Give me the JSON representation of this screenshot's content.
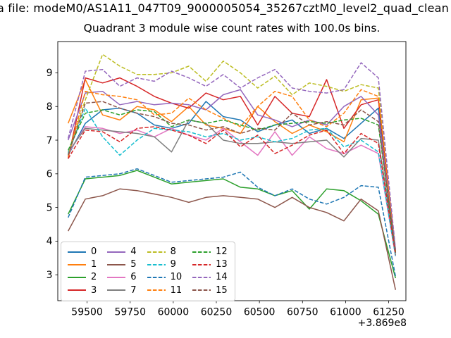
{
  "figure": {
    "suptitle": "a file: modeM0/AS1A11_047T09_9000005054_35267cztM0_level2_quad_clean",
    "axes_title": "Quadrant 3 module wise count rates with 100.0s bins.",
    "x_offset_text": "+3.869e8",
    "background": "#ffffff",
    "axes_color": "#000000"
  },
  "chart_data": {
    "type": "line",
    "title": "Quadrant 3 module wise count rates with 100.0s bins.",
    "xlabel": "",
    "ylabel": "",
    "x_axis_offset": "+3.869e8",
    "grid": false,
    "legend_position": "lower left",
    "legend_columns": 4,
    "xlim": [
      59330,
      61350
    ],
    "ylim": [
      2.23,
      9.93
    ],
    "x_ticks": [
      59500,
      59750,
      60000,
      60250,
      60500,
      60750,
      61000,
      61250
    ],
    "y_ticks": [
      3,
      4,
      5,
      6,
      7,
      8,
      9
    ],
    "x": [
      59390,
      59490,
      59590,
      59690,
      59790,
      59890,
      59990,
      60090,
      60190,
      60290,
      60390,
      60490,
      60590,
      60690,
      60790,
      60890,
      60990,
      61090,
      61190,
      61290
    ],
    "series": [
      {
        "label": "0",
        "color": "#1f77b4",
        "style": "solid",
        "values": [
          6.55,
          7.5,
          7.9,
          7.95,
          7.8,
          7.45,
          7.35,
          7.5,
          8.15,
          7.7,
          7.6,
          7.25,
          7.45,
          7.6,
          7.2,
          7.35,
          7.05,
          7.5,
          7.95,
          3.7
        ]
      },
      {
        "label": "1",
        "color": "#ff7f0e",
        "style": "solid",
        "values": [
          7.5,
          8.8,
          7.75,
          7.6,
          8.0,
          7.9,
          7.55,
          8.0,
          7.45,
          7.35,
          7.2,
          8.0,
          7.55,
          7.2,
          7.45,
          7.25,
          6.95,
          8.2,
          8.25,
          3.65
        ]
      },
      {
        "label": "2",
        "color": "#2ca02c",
        "style": "solid",
        "values": [
          4.8,
          5.85,
          5.9,
          5.95,
          6.1,
          5.9,
          5.7,
          5.75,
          5.8,
          5.85,
          5.6,
          5.55,
          5.35,
          5.5,
          4.95,
          5.55,
          5.5,
          5.2,
          4.8,
          2.9
        ]
      },
      {
        "label": "3",
        "color": "#d62728",
        "style": "solid",
        "values": [
          6.45,
          8.85,
          8.7,
          8.85,
          8.6,
          8.3,
          8.1,
          7.95,
          8.4,
          8.2,
          8.3,
          7.45,
          8.3,
          7.8,
          7.7,
          8.8,
          7.35,
          8.05,
          8.2,
          3.7
        ]
      },
      {
        "label": "4",
        "color": "#9467bd",
        "style": "solid",
        "values": [
          7.0,
          8.4,
          8.45,
          8.05,
          8.15,
          8.05,
          8.1,
          8.05,
          7.9,
          8.35,
          8.5,
          7.75,
          7.6,
          7.4,
          7.6,
          7.45,
          8.0,
          8.3,
          7.75,
          3.7
        ]
      },
      {
        "label": "5",
        "color": "#8c564b",
        "style": "solid",
        "values": [
          4.3,
          5.25,
          5.35,
          5.55,
          5.5,
          5.4,
          5.3,
          5.15,
          5.3,
          5.35,
          5.3,
          5.25,
          5.0,
          5.3,
          5.0,
          4.85,
          4.6,
          5.25,
          4.9,
          2.55
        ]
      },
      {
        "label": "6",
        "color": "#e377c2",
        "style": "solid",
        "values": [
          6.6,
          7.4,
          7.35,
          7.2,
          7.3,
          7.1,
          7.35,
          7.15,
          7.0,
          7.35,
          6.95,
          6.55,
          7.25,
          6.55,
          7.1,
          6.75,
          6.6,
          6.85,
          6.6,
          3.55
        ]
      },
      {
        "label": "7",
        "color": "#7f7f7f",
        "style": "solid",
        "values": [
          6.65,
          7.35,
          7.3,
          7.25,
          7.2,
          7.1,
          6.65,
          7.6,
          7.5,
          7.0,
          6.9,
          6.9,
          6.95,
          6.9,
          6.95,
          7.0,
          6.5,
          7.05,
          7.0,
          3.65
        ]
      },
      {
        "label": "8",
        "color": "#bcbd22",
        "style": "dashed",
        "values": [
          6.6,
          8.2,
          9.55,
          9.2,
          8.95,
          8.95,
          9.0,
          9.2,
          8.75,
          9.35,
          9.0,
          8.55,
          8.9,
          8.35,
          8.7,
          8.6,
          8.45,
          8.65,
          8.55,
          3.7
        ]
      },
      {
        "label": "9",
        "color": "#17becf",
        "style": "dashed",
        "values": [
          6.6,
          7.95,
          7.1,
          6.55,
          7.0,
          7.35,
          7.3,
          7.25,
          7.1,
          7.2,
          7.0,
          7.1,
          6.95,
          7.05,
          7.3,
          7.35,
          6.8,
          7.0,
          6.65,
          3.55
        ]
      },
      {
        "label": "10",
        "color": "#1f77b4",
        "style": "dashed",
        "values": [
          4.7,
          5.9,
          5.95,
          6.0,
          6.15,
          5.95,
          5.75,
          5.8,
          5.85,
          5.9,
          6.05,
          5.6,
          5.35,
          5.55,
          5.25,
          5.1,
          5.3,
          5.65,
          5.6,
          2.95
        ]
      },
      {
        "label": "11",
        "color": "#ff7f0e",
        "style": "dashed",
        "values": [
          6.5,
          8.45,
          8.35,
          8.3,
          8.2,
          7.75,
          7.8,
          8.25,
          7.9,
          7.65,
          7.4,
          8.0,
          8.45,
          8.3,
          7.6,
          7.4,
          7.8,
          8.5,
          8.3,
          3.7
        ]
      },
      {
        "label": "12",
        "color": "#2ca02c",
        "style": "dashed",
        "values": [
          6.7,
          7.8,
          7.9,
          7.75,
          7.9,
          7.85,
          7.4,
          7.6,
          7.5,
          7.6,
          7.45,
          7.3,
          7.45,
          7.5,
          7.55,
          7.5,
          7.6,
          7.65,
          7.45,
          3.65
        ]
      },
      {
        "label": "13",
        "color": "#d62728",
        "style": "dashed",
        "values": [
          6.45,
          7.3,
          7.25,
          6.95,
          7.35,
          7.4,
          7.3,
          7.15,
          6.9,
          7.3,
          6.8,
          7.15,
          6.6,
          6.85,
          7.15,
          7.3,
          6.6,
          7.2,
          6.9,
          3.6
        ]
      },
      {
        "label": "14",
        "color": "#9467bd",
        "style": "dashed",
        "values": [
          7.05,
          9.05,
          9.1,
          8.6,
          8.85,
          8.75,
          9.05,
          8.85,
          8.6,
          8.95,
          8.55,
          8.85,
          9.1,
          8.55,
          8.45,
          8.4,
          8.5,
          9.3,
          8.85,
          3.75
        ]
      },
      {
        "label": "15",
        "color": "#8c564b",
        "style": "dashed",
        "values": [
          6.55,
          8.1,
          8.15,
          7.95,
          7.8,
          7.7,
          7.5,
          7.45,
          7.3,
          7.4,
          7.2,
          7.35,
          7.3,
          7.8,
          7.45,
          7.55,
          7.45,
          7.9,
          7.55,
          3.65
        ]
      }
    ]
  }
}
